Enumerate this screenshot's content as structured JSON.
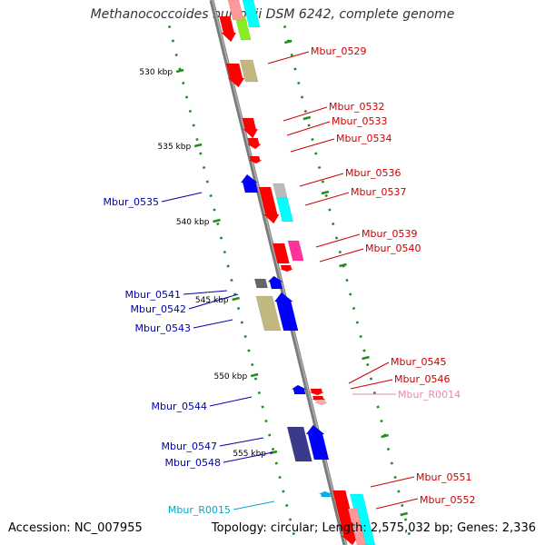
{
  "title": "Methanococcoides burtonii DSM 6242, complete genome",
  "footer": {
    "accession": "Accession: NC_007955",
    "topology": "Topology: circular; Length: 2,575,032 bp; Genes: 2,336"
  },
  "axis": {
    "tick_labels": [
      "530 kbp",
      "535 kbp",
      "540 kbp",
      "545 kbp",
      "550 kbp",
      "555 kbp"
    ]
  },
  "colors": {
    "backbone": "#888888",
    "tick": "#228b22",
    "label_right": "#cc0000",
    "label_left": "#0000aa",
    "label_rna_pink": "#e88aa8",
    "label_rna_cyan": "#00a8c8"
  },
  "genes": [
    {
      "label": "",
      "color": "#ff0000",
      "strand": "forward-outer"
    },
    {
      "label": "",
      "color": "#88ee22",
      "strand": "forward-outer"
    },
    {
      "label": "",
      "color": "#00ffff",
      "strand": "forward-outer"
    },
    {
      "label": "Mbur_0529",
      "color": "#c0b880",
      "strand": "forward"
    },
    {
      "label": "Mbur_0532",
      "color": "#ff0000",
      "strand": "forward"
    },
    {
      "label": "Mbur_0533",
      "color": "#ff0000",
      "strand": "forward"
    },
    {
      "label": "Mbur_0534",
      "color": "#ff0000",
      "strand": "forward"
    },
    {
      "label": "Mbur_0535",
      "color": "#0000ff",
      "strand": "reverse"
    },
    {
      "label": "Mbur_0536",
      "color": "#bbbbbb",
      "strand": "forward"
    },
    {
      "label": "Mbur_0537",
      "color": "#00ffff",
      "strand": "forward"
    },
    {
      "label": "Mbur_0539",
      "color": "#ff3399",
      "strand": "forward"
    },
    {
      "label": "Mbur_0540",
      "color": "#ff0000",
      "strand": "forward"
    },
    {
      "label": "Mbur_0541",
      "color": "#666666",
      "strand": "reverse"
    },
    {
      "label": "Mbur_0542",
      "color": "#0000ff",
      "strand": "reverse"
    },
    {
      "label": "Mbur_0543",
      "color": "#c0b880",
      "strand": "reverse"
    },
    {
      "label": "Mbur_0545",
      "color": "#ff0000",
      "strand": "forward"
    },
    {
      "label": "Mbur_0546",
      "color": "#ff0000",
      "strand": "forward"
    },
    {
      "label": "Mbur_R0014",
      "color": "#ffaaaa",
      "strand": "forward"
    },
    {
      "label": "Mbur_0544",
      "color": "#0000ff",
      "strand": "reverse"
    },
    {
      "label": "Mbur_0547",
      "color": "#3a3a8a",
      "strand": "reverse"
    },
    {
      "label": "Mbur_0548",
      "color": "#0000ff",
      "strand": "reverse"
    },
    {
      "label": "Mbur_R0015",
      "color": "#00b0f0",
      "strand": "reverse"
    },
    {
      "label": "Mbur_0551",
      "color": "#00ffff",
      "strand": "forward"
    },
    {
      "label": "Mbur_0552",
      "color": "#ff0000",
      "strand": "forward"
    }
  ]
}
